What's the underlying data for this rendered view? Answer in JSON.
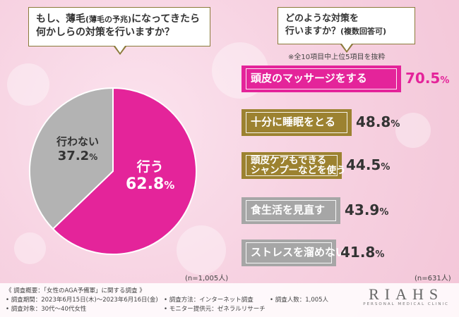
{
  "left_question": {
    "line1_a": "もし、薄毛",
    "line1_b": "(薄毛の予兆)",
    "line1_c": "になってきたら",
    "line2": "何かしらの対策を行いますか？"
  },
  "right_question": {
    "line1": "どのような対策を",
    "line2_a": "行いますか？",
    "line2_b": "(複数回答可)"
  },
  "note": "※全10項目中上位5項目を抜粋",
  "pie_n": "(n=1,005人)",
  "bar_n": "(n=631人)",
  "chart_data": [
    {
      "type": "pie",
      "slices": [
        {
          "label": "行う",
          "value": 62.8,
          "display": "62.8",
          "unit": "%",
          "color": "#e4249a"
        },
        {
          "label": "行わない",
          "value": 37.2,
          "display": "37.2",
          "unit": "%",
          "color": "#b3b3b3"
        }
      ]
    },
    {
      "type": "bar",
      "categories": [
        "頭皮のマッサージをする",
        "十分に睡眠をとる",
        "頭皮ケアもできるシャンプーなどを使う",
        "食生活を見直す",
        "ストレスを溜めない"
      ],
      "label_lines": [
        [
          "頭皮のマッサージをする"
        ],
        [
          "十分に睡眠をとる"
        ],
        [
          "頭皮ケアもできる",
          "シャンプーなどを使う"
        ],
        [
          "食生活を見直す"
        ],
        [
          "ストレスを溜めない"
        ]
      ],
      "values": [
        70.5,
        48.8,
        44.5,
        43.9,
        41.8
      ],
      "display": [
        "70.5",
        "48.8",
        "44.5",
        "43.9",
        "41.8"
      ],
      "unit": "%",
      "colors": [
        "#e4249a",
        "#9c8230",
        "#9c8230",
        "#a6a6a6",
        "#a6a6a6"
      ],
      "value_colors": [
        "#e4249a",
        "#333333",
        "#333333",
        "#333333",
        "#333333"
      ]
    }
  ],
  "footer": {
    "title": "《 調査概要：「女性のAGA予備軍」に関する調査 》",
    "period": "• 調査期間：2023年6月15日(木)〜2023年6月16日(金)",
    "target": "• 調査対象：30代〜40代女性",
    "method": "• 調査方法：インターネット調査",
    "provider": "• モニター提供元：ゼネラルリサーチ",
    "count": "• 調査人数：1,005人"
  },
  "brand": {
    "name": "RIAHS",
    "sub": "PERSONAL MEDICAL CLINIC"
  }
}
